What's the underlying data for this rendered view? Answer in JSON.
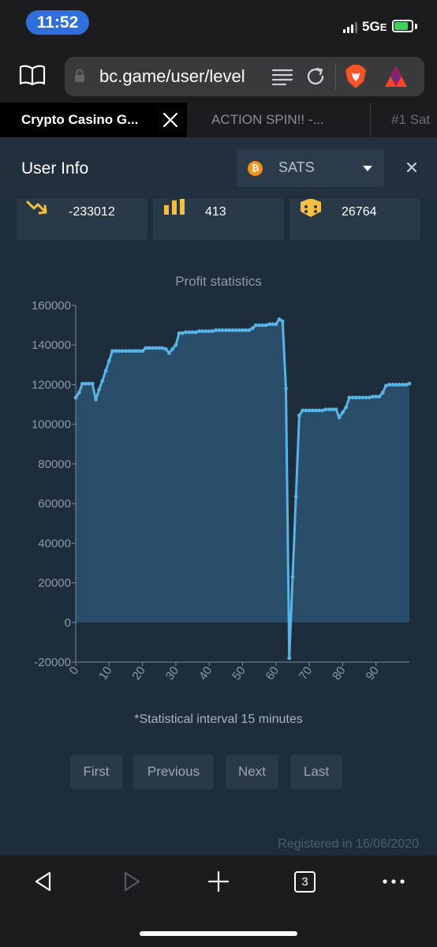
{
  "status_bar": {
    "time": "11:52",
    "network": "5G",
    "network_suffix": "E",
    "battery_fraction": 0.8
  },
  "address_bar": {
    "url": "bc.game/user/level"
  },
  "tabs": [
    {
      "label": "Crypto Casino G..."
    },
    {
      "label": "ACTION SPIN!! -..."
    },
    {
      "label": "#1 Sat"
    }
  ],
  "modal": {
    "title": "User Info",
    "currency": "SATS",
    "currency_glyph": "₿"
  },
  "stats": [
    {
      "value": "-233012",
      "icon": "trend-down-icon"
    },
    {
      "value": "413",
      "icon": "bar-chart-icon"
    },
    {
      "value": "26764",
      "icon": "dice-icon"
    }
  ],
  "chart_data": {
    "type": "area",
    "title": "Profit statistics",
    "xlabel": "",
    "ylabel": "",
    "xlim": [
      0,
      100
    ],
    "ylim": [
      -20000,
      160000
    ],
    "xticks": [
      0,
      10,
      20,
      30,
      40,
      50,
      60,
      70,
      80,
      90
    ],
    "yticks": [
      -20000,
      0,
      20000,
      40000,
      60000,
      80000,
      100000,
      120000,
      140000,
      160000
    ],
    "grid": false,
    "colors": {
      "line": "#58b3e6",
      "fill": "#2d5472"
    },
    "series": [
      {
        "x": [
          0,
          1,
          2,
          3,
          4,
          5,
          6,
          7,
          8,
          9,
          10,
          11,
          12,
          13,
          14,
          15,
          16,
          17,
          18,
          19,
          20,
          21,
          22,
          23,
          24,
          25,
          26,
          27,
          28,
          29,
          30,
          31,
          32,
          33,
          34,
          35,
          36,
          37,
          38,
          39,
          40,
          41,
          42,
          43,
          44,
          45,
          46,
          47,
          48,
          49,
          50,
          51,
          52,
          53,
          54,
          55,
          56,
          57,
          58,
          59,
          60,
          61,
          62,
          63,
          64,
          65,
          66,
          67,
          68,
          69,
          70,
          71,
          72,
          73,
          74,
          75,
          76,
          77,
          78,
          79,
          80,
          81,
          82,
          83,
          84,
          85,
          86,
          87,
          88,
          89,
          90,
          91,
          92,
          93,
          94,
          95,
          96,
          97,
          98,
          99,
          100
        ],
        "values": [
          113500,
          116000,
          120500,
          120500,
          120500,
          120500,
          112500,
          117500,
          122000,
          127000,
          132000,
          137000,
          137000,
          137000,
          137000,
          137000,
          137000,
          137000,
          137000,
          137000,
          137000,
          138500,
          138500,
          138500,
          138500,
          138500,
          138500,
          138000,
          136000,
          138000,
          140000,
          146000,
          146000,
          146500,
          146500,
          146500,
          146500,
          147000,
          147000,
          147000,
          147000,
          147000,
          147500,
          147500,
          147500,
          147500,
          147500,
          147500,
          147500,
          147500,
          147500,
          147500,
          147500,
          148500,
          150000,
          150000,
          150000,
          150000,
          150500,
          150500,
          150500,
          153000,
          152000,
          118000,
          -18000,
          23000,
          63500,
          104500,
          107000,
          107000,
          107000,
          107000,
          107000,
          107000,
          107000,
          107500,
          107500,
          107500,
          107500,
          103500,
          106000,
          108500,
          113500,
          113500,
          113500,
          113500,
          113500,
          113500,
          113500,
          114000,
          114000,
          114000,
          116000,
          119500,
          120000,
          120000,
          120000,
          120000,
          120000,
          120000,
          120500
        ]
      }
    ]
  },
  "chart_note": "*Statistical interval 15 minutes",
  "pager": {
    "first": "First",
    "previous": "Previous",
    "next": "Next",
    "last": "Last"
  },
  "registered": "Registered in 16/06/2020",
  "toolbar": {
    "tabs_count": "3"
  }
}
